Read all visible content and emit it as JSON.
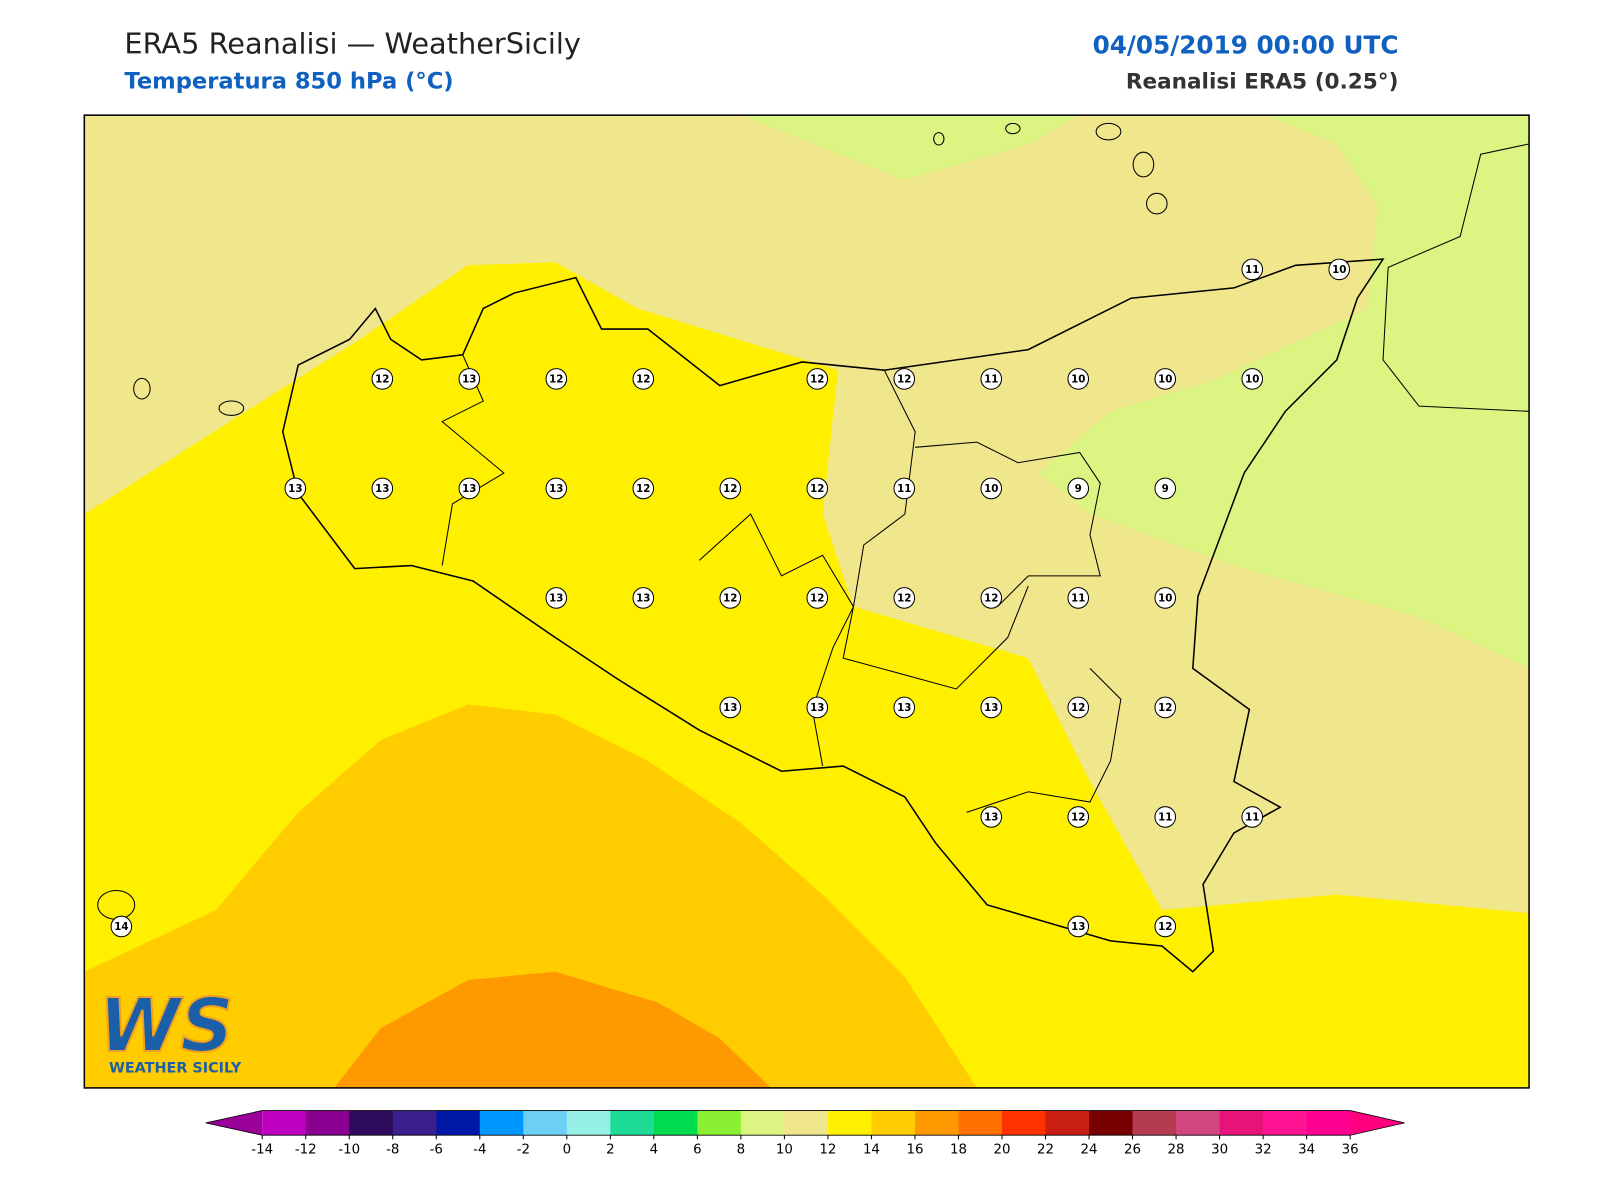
{
  "header": {
    "title": "ERA5 Reanalisi — WeatherSicily",
    "subtitle": "Temperatura 850 hPa (°C)",
    "datetime": "04/05/2019 00:00 UTC",
    "source": "Reanalisi ERA5 (0.25°)"
  },
  "map": {
    "grid": [
      [
        null,
        null,
        null,
        null,
        null,
        null,
        null,
        null,
        null,
        null,
        null,
        null,
        null,
        11,
        10
      ],
      [
        null,
        null,
        null,
        12,
        13,
        12,
        12,
        null,
        12,
        12,
        11,
        10,
        10,
        10,
        null
      ],
      [
        null,
        null,
        13,
        13,
        13,
        13,
        12,
        12,
        12,
        11,
        10,
        9,
        9,
        null,
        null
      ],
      [
        null,
        null,
        null,
        null,
        null,
        13,
        13,
        12,
        12,
        12,
        12,
        11,
        10,
        null,
        null
      ],
      [
        null,
        null,
        null,
        null,
        null,
        null,
        null,
        13,
        13,
        13,
        13,
        12,
        12,
        null,
        null
      ],
      [
        null,
        null,
        null,
        null,
        null,
        null,
        null,
        null,
        null,
        null,
        13,
        12,
        11,
        11,
        null
      ],
      [
        14,
        null,
        null,
        null,
        null,
        null,
        null,
        null,
        null,
        null,
        null,
        13,
        12,
        null,
        null
      ]
    ]
  },
  "colorbar": {
    "ticks": [
      -14,
      -12,
      -10,
      -8,
      -6,
      -4,
      -2,
      0,
      2,
      4,
      6,
      8,
      10,
      12,
      14,
      16,
      18,
      20,
      22,
      24,
      26,
      28,
      30,
      32,
      34,
      36
    ],
    "colors": [
      "#9a009a",
      "#c000c0",
      "#8a0090",
      "#2e0a5a",
      "#3a1e8c",
      "#0018a8",
      "#0096ff",
      "#6ccff6",
      "#96f0e6",
      "#1edc96",
      "#00dc50",
      "#8cf032",
      "#dcf582",
      "#f0e68c",
      "#fff000",
      "#ffcc00",
      "#ff9900",
      "#ff7000",
      "#ff3200",
      "#c81e14",
      "#780000",
      "#b43c50",
      "#d24682",
      "#e6147a",
      "#ff1493",
      "#ff0090",
      "#ff0080"
    ]
  },
  "logo": {
    "mark": "WS",
    "text": "WEATHER SICILY"
  }
}
